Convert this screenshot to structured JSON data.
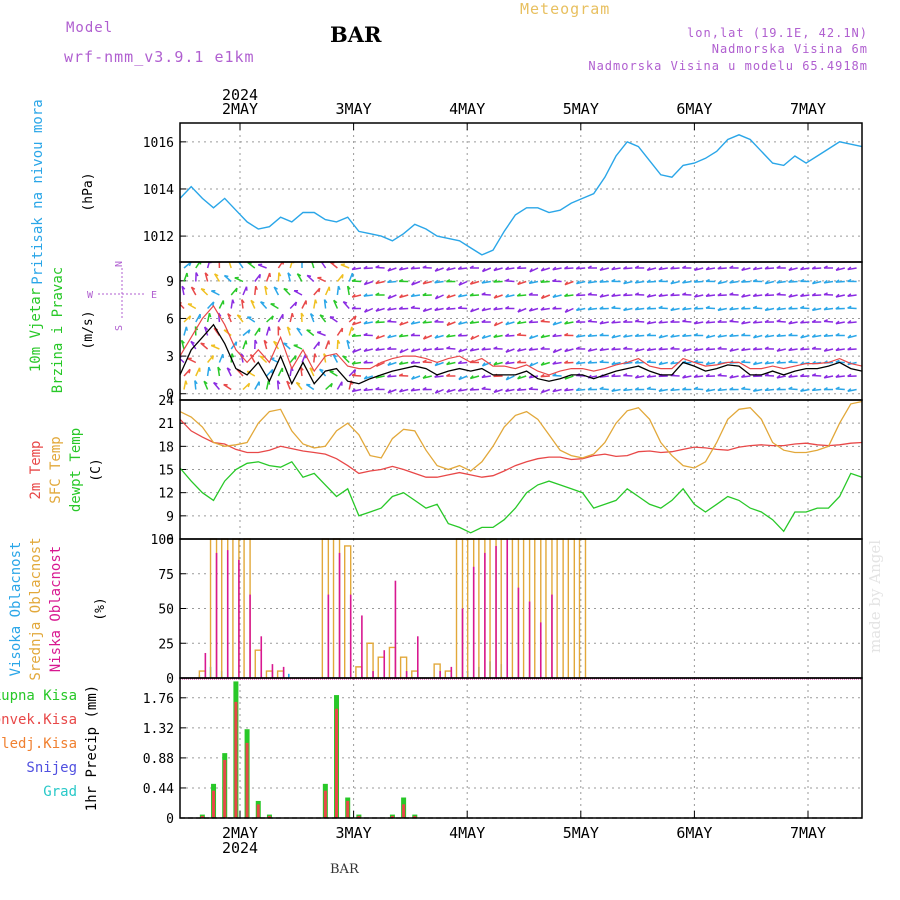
{
  "header": {
    "model_label": "Model",
    "model_name": "wrf-nmm_v3.9.1 e1km",
    "station": "BAR",
    "product": "Meteogram",
    "coords": "lon,lat (19.1E, 42.1N)",
    "altitude": "Nadmorska Visina 6m",
    "model_altitude": "Nadmorska Visina u modelu 65.4918m"
  },
  "credit": "made by Angel",
  "footer": "BAR",
  "colors": {
    "pressure": "#2aa6e8",
    "temp2m": "#e84848",
    "sfc": "#e2a83a",
    "dewpt": "#28c828",
    "high_cloud": "#2aa6e8",
    "mid_cloud": "#e2a83a",
    "low_cloud": "#d81890",
    "total_rain": "#28c828",
    "convective": "#e84848",
    "freezing": "#f08030",
    "snow": "#5050e0",
    "hail": "#28c8c8",
    "wind_max": "#e84848",
    "wind_mean": "#000000",
    "ylabel_wind": "#28c828",
    "compass": "#b05fd0"
  },
  "compass": {
    "n": "N",
    "e": "E",
    "w": "W",
    "s": "S"
  },
  "chart_data": [
    {
      "type": "line",
      "panel": "pressure",
      "ylabel": [
        "Pritisak na nivou mora",
        "(hPa)"
      ],
      "yticks": [
        1012,
        1014,
        1016
      ],
      "ylim": [
        1010.9,
        1016.8
      ],
      "x_start": "2024-05-01 12:00",
      "x_step_hours": 3,
      "top_axis": {
        "year": "2024",
        "labels": [
          "2MAY",
          "3MAY",
          "4MAY",
          "5MAY",
          "6MAY",
          "7MAY"
        ]
      },
      "series": [
        {
          "values": [
            1013.6,
            1014.1,
            1013.6,
            1013.2,
            1013.6,
            1013.1,
            1012.6,
            1012.3,
            1012.4,
            1012.8,
            1012.6,
            1013.0,
            1013.0,
            1012.7,
            1012.6,
            1012.8,
            1012.2,
            1012.1,
            1012.0,
            1011.8,
            1012.1,
            1012.5,
            1012.3,
            1012.0,
            1011.9,
            1011.8,
            1011.5,
            1011.2,
            1011.4,
            1012.2,
            1012.9,
            1013.2,
            1013.2,
            1013.0,
            1013.1,
            1013.4,
            1013.6,
            1013.8,
            1014.5,
            1015.4,
            1016.0,
            1015.8,
            1015.2,
            1014.6,
            1014.5,
            1015.0,
            1015.1,
            1015.3,
            1015.6,
            1016.1,
            1016.3,
            1016.1,
            1015.6,
            1015.1,
            1015.0,
            1015.4,
            1015.1,
            1015.4,
            1015.7,
            1016.0,
            1015.9,
            1015.8
          ]
        }
      ]
    },
    {
      "type": "line",
      "panel": "wind",
      "ylabel": [
        "10m Vjetar",
        "Brzina i Pravac",
        "(m/s)"
      ],
      "yticks": [
        0,
        3,
        6,
        9
      ],
      "ylim": [
        -0.5,
        10.5
      ],
      "series": [
        {
          "name": "mean",
          "values": [
            1.5,
            3.5,
            4.5,
            5.5,
            4.0,
            2.0,
            1.5,
            2.5,
            1.0,
            3.0,
            0.8,
            2.5,
            0.8,
            1.8,
            2.0,
            1.0,
            0.8,
            1.2,
            1.5,
            1.8,
            2.0,
            2.2,
            2.0,
            1.5,
            1.8,
            2.0,
            1.8,
            2.0,
            1.5,
            1.5,
            1.5,
            1.8,
            1.2,
            1.0,
            1.2,
            1.5,
            1.5,
            1.2,
            1.5,
            1.8,
            2.0,
            2.2,
            1.8,
            1.5,
            1.5,
            2.5,
            2.2,
            1.8,
            2.0,
            2.3,
            2.2,
            1.5,
            1.5,
            1.8,
            1.5,
            1.8,
            2.0,
            2.0,
            2.2,
            2.5,
            2.0,
            1.8
          ]
        },
        {
          "name": "max",
          "values": [
            3.0,
            4.5,
            6.0,
            7.0,
            5.5,
            3.5,
            2.5,
            3.5,
            2.5,
            4.5,
            2.0,
            3.5,
            1.8,
            3.0,
            3.2,
            2.2,
            2.0,
            2.0,
            2.5,
            2.8,
            3.0,
            3.0,
            2.8,
            2.5,
            2.8,
            3.0,
            2.5,
            2.8,
            2.2,
            2.2,
            2.0,
            2.3,
            1.8,
            1.5,
            1.8,
            2.0,
            2.0,
            1.8,
            2.0,
            2.3,
            2.5,
            2.8,
            2.2,
            2.0,
            2.0,
            2.8,
            2.5,
            2.2,
            2.3,
            2.5,
            2.5,
            2.0,
            2.0,
            2.2,
            2.0,
            2.2,
            2.4,
            2.4,
            2.5,
            2.8,
            2.4,
            2.2
          ]
        }
      ]
    },
    {
      "type": "line",
      "panel": "temperature",
      "ylabel": [
        "2m Temp",
        "SFC Temp",
        "dewpt Temp",
        "(C)"
      ],
      "yticks": [
        6,
        9,
        12,
        15,
        18,
        21,
        24
      ],
      "ylim": [
        6,
        24
      ],
      "series": [
        {
          "name": "2m Temp",
          "values": [
            21.5,
            20.0,
            19.2,
            18.5,
            18.3,
            17.6,
            17.2,
            17.2,
            17.5,
            18.0,
            17.7,
            17.4,
            17.2,
            17.0,
            16.4,
            15.5,
            14.5,
            14.8,
            15.0,
            15.4,
            15.0,
            14.5,
            14.0,
            14.0,
            14.3,
            14.6,
            14.3,
            14.0,
            14.2,
            14.8,
            15.5,
            16.0,
            16.4,
            16.6,
            16.6,
            16.3,
            16.4,
            16.8,
            17.0,
            16.7,
            16.8,
            17.3,
            17.4,
            17.2,
            17.3,
            17.6,
            17.9,
            17.8,
            17.6,
            17.5,
            17.9,
            18.1,
            18.2,
            18.1,
            18.1,
            18.3,
            18.4,
            18.2,
            18.1,
            18.2,
            18.4,
            18.5
          ]
        },
        {
          "name": "SFC Temp",
          "values": [
            22.5,
            21.8,
            20.5,
            18.5,
            18.0,
            18.2,
            18.5,
            21.0,
            22.5,
            22.8,
            20.0,
            18.3,
            17.8,
            18.0,
            20.0,
            21.0,
            19.5,
            16.8,
            16.5,
            19.0,
            20.2,
            20.0,
            17.5,
            15.5,
            15.0,
            15.5,
            14.8,
            16.0,
            18.0,
            20.5,
            22.0,
            22.5,
            21.5,
            19.5,
            17.5,
            16.8,
            16.5,
            17.0,
            18.5,
            21.0,
            22.6,
            23.0,
            21.5,
            18.5,
            16.8,
            15.5,
            15.2,
            16.0,
            18.5,
            21.5,
            22.8,
            23.0,
            21.5,
            18.5,
            17.5,
            17.2,
            17.2,
            17.5,
            18.0,
            21.0,
            23.5,
            23.8
          ]
        },
        {
          "name": "dewpt Temp",
          "values": [
            15.2,
            13.5,
            12.0,
            11.0,
            13.5,
            15.0,
            15.8,
            16.0,
            15.5,
            15.3,
            16.0,
            14.0,
            14.5,
            13.0,
            11.5,
            12.5,
            9.0,
            9.5,
            10.0,
            11.5,
            12.0,
            11.0,
            10.0,
            10.5,
            8.0,
            7.5,
            6.8,
            7.5,
            7.5,
            8.5,
            10.0,
            12.0,
            13.0,
            13.5,
            13.0,
            12.5,
            12.0,
            10.0,
            10.5,
            11.0,
            12.5,
            11.5,
            10.5,
            10.0,
            11.0,
            12.5,
            10.5,
            9.5,
            10.5,
            11.5,
            11.0,
            10.0,
            9.5,
            8.5,
            7.0,
            9.5,
            9.5,
            10.0,
            10.0,
            11.5,
            14.5,
            14.0
          ]
        }
      ]
    },
    {
      "type": "bar",
      "panel": "clouds",
      "ylabel": [
        "Visoka Oblacnost",
        "Srednja Oblacnost",
        "Niska Oblacnost",
        "(%)"
      ],
      "yticks": [
        0,
        25,
        50,
        75,
        100
      ],
      "ylim": [
        0,
        100
      ],
      "series": [
        {
          "name": "Visoka Oblacnost",
          "values": [
            0,
            0,
            2,
            8,
            5,
            0,
            0,
            0,
            0,
            0,
            3,
            0,
            0,
            0,
            0,
            0,
            0,
            0,
            0,
            0,
            0,
            0,
            0,
            0,
            0,
            0,
            5,
            8,
            12,
            10,
            0,
            0,
            0,
            0,
            0,
            0,
            0,
            0,
            0,
            0,
            0,
            0,
            0,
            0,
            0,
            0,
            0,
            0,
            0,
            0,
            0,
            0,
            0,
            0,
            0,
            0,
            0,
            0,
            0,
            0,
            0,
            0
          ]
        },
        {
          "name": "Srednja Oblacnost",
          "values": [
            0,
            0,
            5,
            100,
            100,
            100,
            100,
            20,
            5,
            5,
            0,
            0,
            0,
            100,
            100,
            95,
            8,
            25,
            15,
            22,
            15,
            5,
            0,
            10,
            5,
            100,
            100,
            100,
            100,
            100,
            100,
            100,
            100,
            100,
            100,
            100,
            100,
            0,
            0,
            0,
            0,
            0,
            0,
            0,
            0,
            0,
            0,
            0,
            0,
            0,
            0,
            0,
            0,
            0,
            0,
            0,
            0,
            0,
            0,
            0,
            0,
            0
          ]
        },
        {
          "name": "Niska Oblacnost",
          "values": [
            0,
            0,
            18,
            90,
            92,
            85,
            60,
            30,
            10,
            8,
            0,
            0,
            0,
            60,
            90,
            60,
            45,
            5,
            20,
            70,
            5,
            30,
            0,
            5,
            8,
            50,
            80,
            90,
            95,
            100,
            65,
            55,
            40,
            60,
            0,
            0,
            0,
            0,
            0,
            0,
            0,
            0,
            0,
            0,
            0,
            0,
            0,
            0,
            0,
            0,
            0,
            0,
            0,
            0,
            0,
            0,
            0,
            0,
            0,
            0,
            0,
            0
          ]
        }
      ]
    },
    {
      "type": "bar",
      "panel": "precip",
      "ylabel": [
        "1hr Precip (mm)"
      ],
      "yticks": [
        0,
        0.44,
        0.88,
        1.32,
        1.76
      ],
      "ylim": [
        0,
        2.05
      ],
      "legend": [
        "Ukupna Kisa",
        "Konvek.Kisa",
        "Zaledj.Kisa",
        "Snijeg",
        "Grad"
      ],
      "bottom_axis": {
        "year": "2024",
        "labels": [
          "2MAY",
          "3MAY",
          "4MAY",
          "5MAY",
          "6MAY",
          "7MAY"
        ]
      },
      "series": [
        {
          "name": "Ukupna Kisa",
          "values": [
            0,
            0,
            0.05,
            0.5,
            0.95,
            2.0,
            1.3,
            0.25,
            0.05,
            0,
            0,
            0,
            0,
            0.5,
            1.8,
            0.3,
            0.05,
            0,
            0,
            0.05,
            0.3,
            0.05,
            0,
            0,
            0,
            0,
            0,
            0,
            0,
            0,
            0,
            0,
            0,
            0,
            0,
            0,
            0,
            0,
            0,
            0,
            0,
            0,
            0,
            0,
            0,
            0,
            0,
            0,
            0,
            0,
            0,
            0,
            0,
            0,
            0,
            0,
            0,
            0,
            0,
            0,
            0,
            0
          ]
        },
        {
          "name": "Konvek.Kisa",
          "values": [
            0,
            0,
            0.03,
            0.4,
            0.85,
            1.7,
            1.1,
            0.2,
            0.03,
            0,
            0,
            0,
            0,
            0.4,
            1.6,
            0.25,
            0.03,
            0,
            0,
            0.03,
            0.2,
            0.03,
            0,
            0,
            0,
            0,
            0,
            0,
            0,
            0,
            0,
            0,
            0,
            0,
            0,
            0,
            0,
            0,
            0,
            0,
            0,
            0,
            0,
            0,
            0,
            0,
            0,
            0,
            0,
            0,
            0,
            0,
            0,
            0,
            0,
            0,
            0,
            0,
            0,
            0,
            0,
            0
          ]
        }
      ]
    }
  ]
}
